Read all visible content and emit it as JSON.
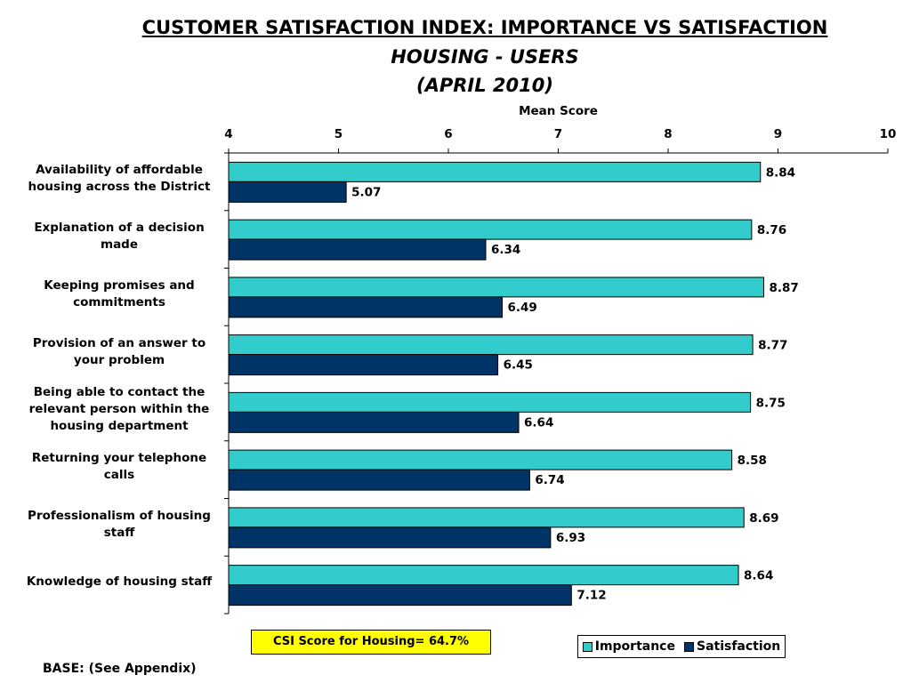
{
  "chart_data": {
    "type": "bar",
    "orientation": "horizontal",
    "title": "CUSTOMER SATISFACTION INDEX: IMPORTANCE VS SATISFACTION",
    "subtitle": "HOUSING - USERS",
    "subtitle2": "(APRIL 2010)",
    "xlabel": "Mean Score",
    "xlim": [
      4,
      10
    ],
    "xticks": [
      4,
      5,
      6,
      7,
      8,
      9,
      10
    ],
    "categories": [
      "Availability of affordable housing across the District",
      "Explanation of a decision made",
      "Keeping promises and commitments",
      "Provision of an answer to your problem",
      "Being able to contact the relevant person within the housing department",
      "Returning your telephone calls",
      "Professionalism of housing staff",
      "Knowledge of housing staff"
    ],
    "series": [
      {
        "name": "Importance",
        "color": "#33cccc",
        "values": [
          8.84,
          8.76,
          8.87,
          8.77,
          8.75,
          8.58,
          8.69,
          8.64
        ]
      },
      {
        "name": "Satisfaction",
        "color": "#003366",
        "values": [
          5.07,
          6.34,
          6.49,
          6.45,
          6.64,
          6.74,
          6.93,
          7.12
        ]
      }
    ],
    "legend_position": "bottom-right",
    "grid": false
  },
  "csi_box": {
    "text": "CSI Score for Housing= 64.7%",
    "color": "#ffff00"
  },
  "footer": {
    "base": "BASE: (See Appendix)"
  }
}
